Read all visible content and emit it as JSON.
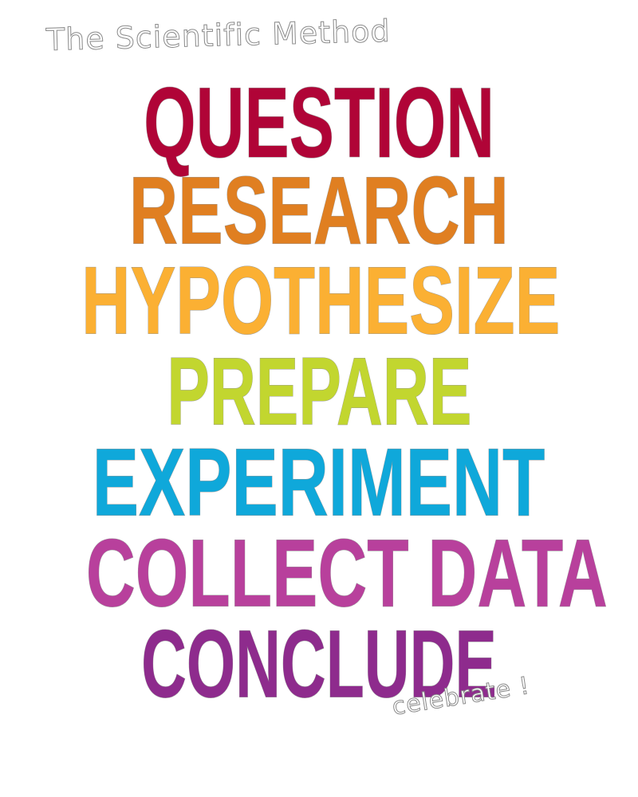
{
  "heading": "The Scientific Method",
  "steps": [
    {
      "label": "QUESTION",
      "color": "#b00437"
    },
    {
      "label": "RESEARCH",
      "color": "#e07f21"
    },
    {
      "label": "HYPOTHESIZE",
      "color": "#fbb033"
    },
    {
      "label": "PREPARE",
      "color": "#c2d62f"
    },
    {
      "label": "EXPERIMENT",
      "color": "#0fa8da"
    },
    {
      "label": "COLLECT DATA",
      "color": "#b8409c"
    },
    {
      "label": "CONCLUDE",
      "color": "#8e2b8d"
    }
  ],
  "footer": "celebrate !"
}
